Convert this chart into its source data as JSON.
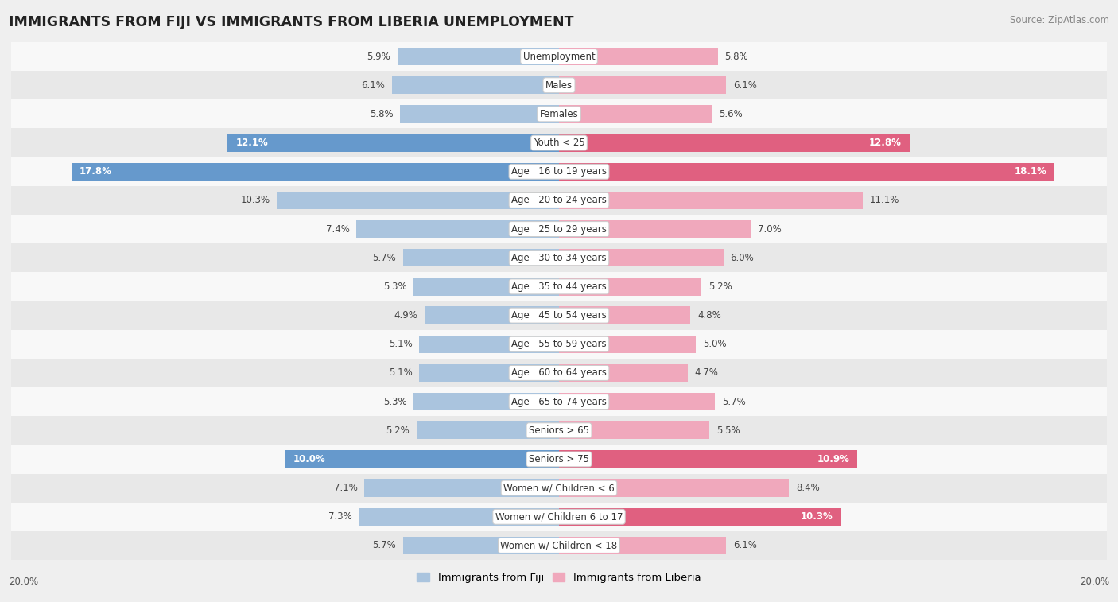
{
  "title": "IMMIGRANTS FROM FIJI VS IMMIGRANTS FROM LIBERIA UNEMPLOYMENT",
  "source": "Source: ZipAtlas.com",
  "categories": [
    "Unemployment",
    "Males",
    "Females",
    "Youth < 25",
    "Age | 16 to 19 years",
    "Age | 20 to 24 years",
    "Age | 25 to 29 years",
    "Age | 30 to 34 years",
    "Age | 35 to 44 years",
    "Age | 45 to 54 years",
    "Age | 55 to 59 years",
    "Age | 60 to 64 years",
    "Age | 65 to 74 years",
    "Seniors > 65",
    "Seniors > 75",
    "Women w/ Children < 6",
    "Women w/ Children 6 to 17",
    "Women w/ Children < 18"
  ],
  "fiji_values": [
    5.9,
    6.1,
    5.8,
    12.1,
    17.8,
    10.3,
    7.4,
    5.7,
    5.3,
    4.9,
    5.1,
    5.1,
    5.3,
    5.2,
    10.0,
    7.1,
    7.3,
    5.7
  ],
  "liberia_values": [
    5.8,
    6.1,
    5.6,
    12.8,
    18.1,
    11.1,
    7.0,
    6.0,
    5.2,
    4.8,
    5.0,
    4.7,
    5.7,
    5.5,
    10.9,
    8.4,
    10.3,
    6.1
  ],
  "fiji_color_normal": "#aac4de",
  "liberia_color_normal": "#f0a8bc",
  "fiji_color_highlight": "#6699cc",
  "liberia_color_highlight": "#e06080",
  "fiji_label": "Immigrants from Fiji",
  "liberia_label": "Immigrants from Liberia",
  "max_value": 20.0,
  "bg_color": "#efefef",
  "row_bg_even": "#f8f8f8",
  "row_bg_odd": "#e8e8e8",
  "axis_label": "20.0%",
  "highlight_fiji": [
    false,
    false,
    false,
    true,
    true,
    false,
    false,
    false,
    false,
    false,
    false,
    false,
    false,
    false,
    true,
    false,
    false,
    false
  ],
  "highlight_liberia": [
    false,
    false,
    false,
    true,
    true,
    false,
    false,
    false,
    false,
    false,
    false,
    false,
    false,
    false,
    true,
    false,
    true,
    false
  ]
}
